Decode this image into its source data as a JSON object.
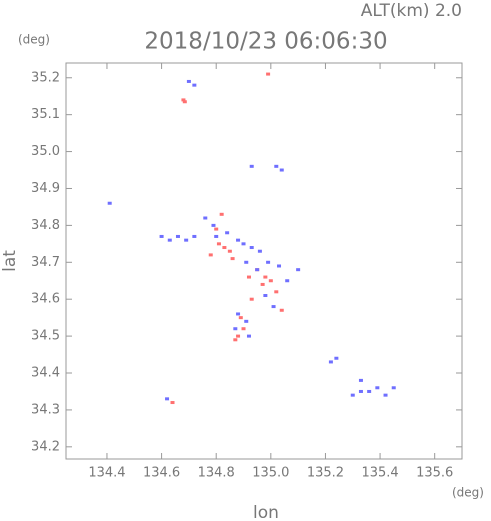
{
  "chart_data": {
    "type": "scatter",
    "title": "2018/10/23 06:06:30",
    "subtitle": "ALT(km) 2.0",
    "y_unit": "(deg)",
    "x_unit": "(deg)",
    "xlabel": "lon",
    "ylabel": "lat",
    "xlim": [
      134.25,
      135.7
    ],
    "ylim": [
      34.167,
      35.24
    ],
    "xticks": [
      134.4,
      134.6,
      134.8,
      {
        "value": 135,
        "label": "135.0"
      },
      135.2,
      135.4,
      135.6
    ],
    "yticks": [
      34.2,
      34.3,
      34.4,
      34.5,
      34.6,
      34.7,
      34.8,
      34.9,
      {
        "value": 35,
        "label": "35.0"
      },
      35.1,
      35.2
    ],
    "series": [
      {
        "color": "#ff7070",
        "x": [
          134.68,
          134.685,
          134.99,
          134.8,
          134.81,
          134.83,
          134.85,
          134.82,
          134.78,
          134.86,
          134.95,
          134.98,
          135.0,
          135.02,
          134.97,
          134.89,
          134.9,
          134.88,
          134.93,
          134.64,
          135.04,
          134.87,
          134.92
        ],
        "y": [
          35.14,
          35.135,
          35.21,
          34.79,
          34.75,
          34.74,
          34.73,
          34.83,
          34.72,
          34.71,
          34.68,
          34.66,
          34.65,
          34.62,
          34.64,
          34.55,
          34.52,
          34.5,
          34.6,
          34.32,
          34.57,
          34.49,
          34.66
        ]
      },
      {
        "color": "#6f6fff",
        "x": [
          134.7,
          134.72,
          134.93,
          135.02,
          135.04,
          134.6,
          134.63,
          134.66,
          134.69,
          134.72,
          134.79,
          134.84,
          134.88,
          134.9,
          134.93,
          134.96,
          134.91,
          134.95,
          134.99,
          135.03,
          135.06,
          135.1,
          134.88,
          134.91,
          134.92,
          134.87,
          135.22,
          135.24,
          135.33,
          135.3,
          135.33,
          135.36,
          135.39,
          135.42,
          135.45,
          134.62,
          134.41,
          134.76,
          134.8,
          134.98,
          135.01
        ],
        "y": [
          35.19,
          35.18,
          34.96,
          34.96,
          34.95,
          34.77,
          34.76,
          34.77,
          34.76,
          34.77,
          34.8,
          34.78,
          34.76,
          34.75,
          34.74,
          34.73,
          34.7,
          34.68,
          34.7,
          34.69,
          34.65,
          34.68,
          34.56,
          34.54,
          34.5,
          34.52,
          34.43,
          34.44,
          34.38,
          34.34,
          34.35,
          34.35,
          34.36,
          34.34,
          34.36,
          34.33,
          34.86,
          34.82,
          34.77,
          34.61,
          34.58
        ]
      }
    ]
  }
}
